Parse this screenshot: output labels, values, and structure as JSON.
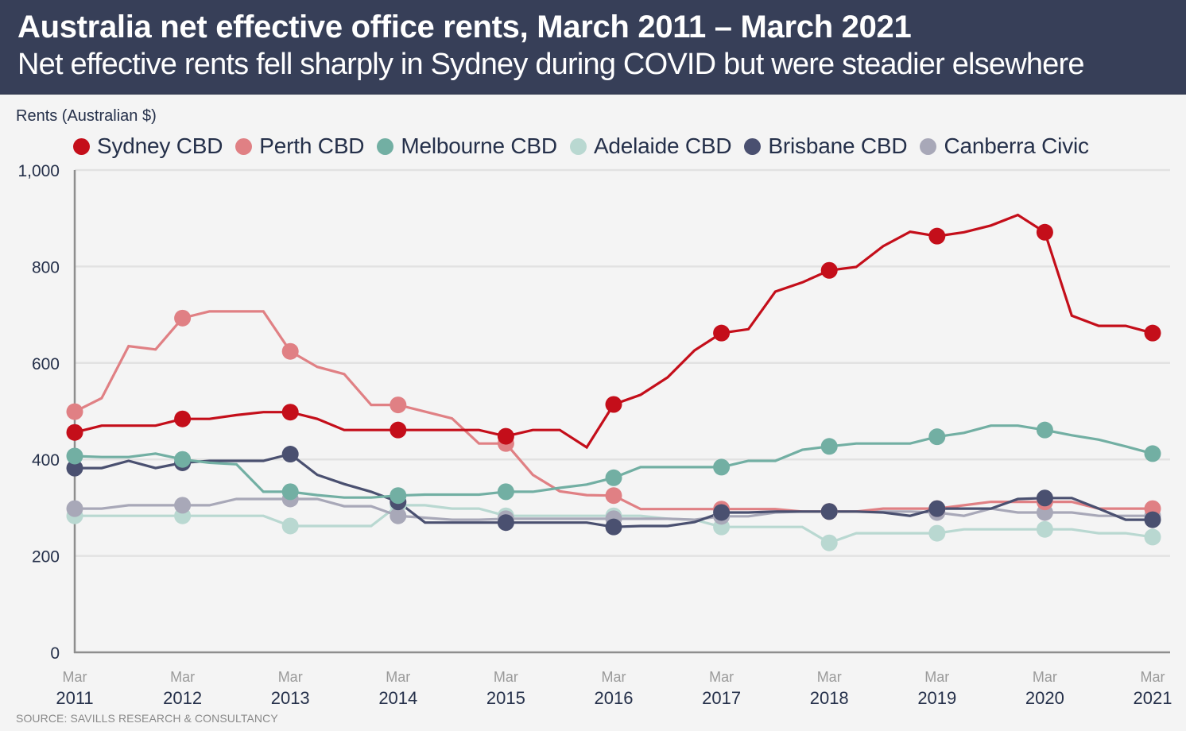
{
  "header": {
    "title": "Australia net effective office rents, March 2011 – March 2021",
    "subtitle": "Net effective rents fell sharply in Sydney during COVID but were steadier elsewhere"
  },
  "source": "SOURCE: SAVILLS RESEARCH & CONSULTANCY",
  "chart_data": {
    "type": "line",
    "title": "Australia net effective office rents, March 2011 – March 2021",
    "subtitle": "Net effective rents fell sharply in Sydney during COVID but were steadier elsewhere",
    "xlabel": "",
    "ylabel": "Rents (Australian $)",
    "ylim": [
      0,
      1000
    ],
    "yticks": [
      0,
      200,
      400,
      600,
      800,
      1000
    ],
    "ytick_labels": [
      "0",
      "200",
      "400",
      "600",
      "800",
      "1,000"
    ],
    "xlim": [
      2011,
      2021
    ],
    "xticks": [
      {
        "month": "Mar",
        "year": "2011"
      },
      {
        "month": "Mar",
        "year": "2012"
      },
      {
        "month": "Mar",
        "year": "2013"
      },
      {
        "month": "Mar",
        "year": "2014"
      },
      {
        "month": "Mar",
        "year": "2015"
      },
      {
        "month": "Mar",
        "year": "2016"
      },
      {
        "month": "Mar",
        "year": "2017"
      },
      {
        "month": "Mar",
        "year": "2018"
      },
      {
        "month": "Mar",
        "year": "2019"
      },
      {
        "month": "Mar",
        "year": "2020"
      },
      {
        "month": "Mar",
        "year": "2021"
      }
    ],
    "x_frequency": "quarterly (markers shown at each March)",
    "grid": "horizontal",
    "legend_position": "top",
    "series": [
      {
        "name": "Adelaide CBD",
        "color": "#b9d8d1",
        "values": [
          283,
          283,
          283,
          283,
          283,
          283,
          283,
          283,
          262,
          262,
          262,
          262,
          305,
          305,
          298,
          298,
          283,
          283,
          283,
          283,
          283,
          283,
          277,
          275,
          260,
          260,
          260,
          260,
          227,
          247,
          247,
          247,
          247,
          255,
          255,
          255,
          255,
          255,
          247,
          247,
          239
        ]
      },
      {
        "name": "Canberra Civic",
        "color": "#a8a8b8",
        "values": [
          298,
          298,
          305,
          305,
          305,
          305,
          318,
          318,
          318,
          318,
          303,
          303,
          283,
          279,
          275,
          275,
          277,
          277,
          277,
          277,
          277,
          277,
          277,
          275,
          282,
          282,
          290,
          292,
          292,
          292,
          292,
          292,
          290,
          283,
          298,
          290,
          290,
          290,
          283,
          283,
          283
        ]
      },
      {
        "name": "Perth CBD",
        "color": "#e08084",
        "values": [
          499,
          527,
          635,
          628,
          693,
          707,
          707,
          707,
          624,
          592,
          577,
          513,
          513,
          499,
          485,
          433,
          433,
          368,
          334,
          326,
          325,
          297,
          297,
          297,
          297,
          297,
          297,
          292,
          292,
          292,
          298,
          298,
          298,
          305,
          312,
          312,
          312,
          312,
          298,
          298,
          298
        ]
      },
      {
        "name": "Brisbane CBD",
        "color": "#4a5070",
        "values": [
          382,
          382,
          397,
          382,
          393,
          397,
          397,
          397,
          411,
          368,
          349,
          333,
          312,
          269,
          269,
          269,
          269,
          269,
          269,
          269,
          260,
          262,
          262,
          270,
          290,
          290,
          292,
          292,
          292,
          292,
          290,
          283,
          298,
          298,
          298,
          318,
          320,
          320,
          298,
          275,
          275
        ]
      },
      {
        "name": "Melbourne CBD",
        "color": "#72afa3",
        "values": [
          407,
          405,
          405,
          412,
          400,
          393,
          390,
          333,
          333,
          326,
          321,
          321,
          325,
          327,
          327,
          327,
          333,
          333,
          341,
          348,
          362,
          384,
          384,
          384,
          384,
          397,
          397,
          420,
          427,
          433,
          433,
          433,
          447,
          455,
          470,
          470,
          461,
          450,
          441,
          427,
          412
        ]
      },
      {
        "name": "Sydney CBD",
        "color": "#c40e1a",
        "values": [
          456,
          470,
          470,
          470,
          484,
          484,
          492,
          498,
          498,
          484,
          461,
          461,
          461,
          461,
          461,
          461,
          448,
          461,
          461,
          425,
          514,
          534,
          570,
          626,
          662,
          670,
          748,
          767,
          792,
          799,
          842,
          872,
          863,
          871,
          885,
          907,
          871,
          698,
          677,
          677,
          662
        ]
      }
    ],
    "legend_order": [
      "Sydney CBD",
      "Perth CBD",
      "Melbourne CBD",
      "Adelaide CBD",
      "Brisbane CBD",
      "Canberra Civic"
    ]
  }
}
